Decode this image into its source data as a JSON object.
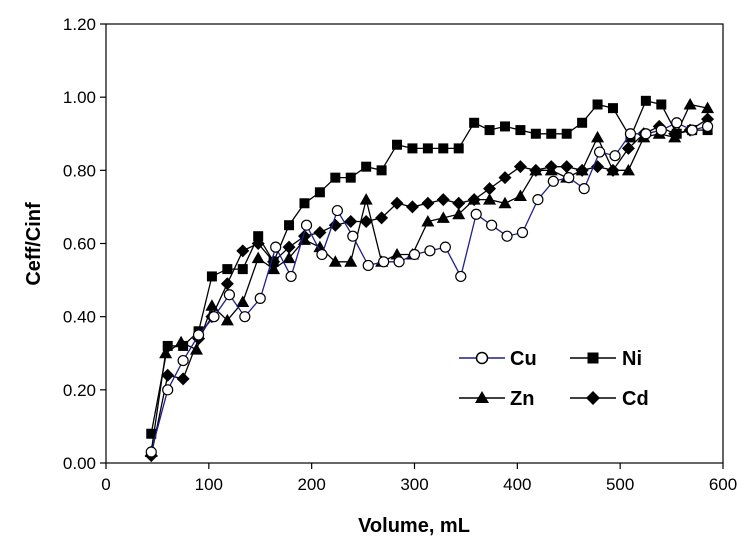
{
  "chart_data": {
    "type": "line",
    "title": "",
    "xlabel": "Volume, mL",
    "ylabel": "Ceff/Cinf",
    "xlim": [
      0,
      600
    ],
    "ylim": [
      0,
      1.2
    ],
    "x_ticks": [
      "0",
      "100",
      "200",
      "300",
      "400",
      "500",
      "600"
    ],
    "y_ticks": [
      "0.00",
      "0.20",
      "0.40",
      "0.60",
      "0.80",
      "1.00",
      "1.20"
    ],
    "grid": false,
    "legend_position": "bottom-right",
    "series": [
      {
        "name": "Cu",
        "marker": "circle-open",
        "line_color": "#1f1f8f",
        "x": [
          44,
          60,
          75,
          90,
          105,
          120,
          135,
          150,
          165,
          180,
          195,
          210,
          225,
          240,
          255,
          270,
          285,
          300,
          315,
          330,
          345,
          360,
          375,
          390,
          405,
          420,
          435,
          450,
          465,
          480,
          495,
          510,
          525,
          540,
          555,
          570,
          585
        ],
        "y": [
          0.03,
          0.2,
          0.28,
          0.35,
          0.4,
          0.46,
          0.4,
          0.45,
          0.59,
          0.51,
          0.65,
          0.57,
          0.69,
          0.62,
          0.54,
          0.55,
          0.55,
          0.57,
          0.58,
          0.59,
          0.51,
          0.68,
          0.65,
          0.62,
          0.63,
          0.72,
          0.77,
          0.78,
          0.75,
          0.85,
          0.84,
          0.9,
          0.9,
          0.91,
          0.93,
          0.91,
          0.92
        ]
      },
      {
        "name": "Ni",
        "marker": "square",
        "line_color": "#000000",
        "x": [
          44,
          60,
          75,
          90,
          103,
          118,
          133,
          148,
          163,
          178,
          193,
          208,
          223,
          238,
          253,
          268,
          283,
          298,
          313,
          328,
          343,
          358,
          373,
          388,
          403,
          418,
          433,
          448,
          463,
          478,
          493,
          510,
          525,
          540,
          555,
          570,
          585
        ],
        "y": [
          0.08,
          0.32,
          0.32,
          0.36,
          0.51,
          0.53,
          0.53,
          0.62,
          0.55,
          0.65,
          0.71,
          0.74,
          0.78,
          0.78,
          0.81,
          0.8,
          0.87,
          0.86,
          0.86,
          0.86,
          0.86,
          0.93,
          0.91,
          0.92,
          0.91,
          0.9,
          0.9,
          0.9,
          0.93,
          0.98,
          0.97,
          0.89,
          0.99,
          0.98,
          0.9,
          0.91,
          0.91
        ]
      },
      {
        "name": "Zn",
        "marker": "triangle",
        "line_color": "#000000",
        "x": [
          44,
          58,
          73,
          88,
          103,
          118,
          133,
          148,
          163,
          178,
          193,
          208,
          223,
          238,
          253,
          268,
          283,
          298,
          313,
          328,
          343,
          358,
          373,
          388,
          403,
          418,
          433,
          448,
          463,
          478,
          493,
          508,
          523,
          538,
          553,
          568,
          585
        ],
        "y": [
          0.03,
          0.3,
          0.33,
          0.31,
          0.43,
          0.39,
          0.44,
          0.56,
          0.53,
          0.56,
          0.61,
          0.59,
          0.55,
          0.55,
          0.72,
          0.55,
          0.57,
          0.57,
          0.66,
          0.67,
          0.68,
          0.72,
          0.72,
          0.71,
          0.73,
          0.8,
          0.8,
          0.78,
          0.8,
          0.89,
          0.8,
          0.8,
          0.89,
          0.9,
          0.89,
          0.98,
          0.97
        ]
      },
      {
        "name": "Cd",
        "marker": "diamond",
        "line_color": "#000000",
        "x": [
          44,
          60,
          75,
          90,
          103,
          118,
          133,
          148,
          163,
          178,
          193,
          208,
          223,
          238,
          253,
          268,
          283,
          298,
          313,
          328,
          343,
          358,
          373,
          388,
          403,
          418,
          433,
          448,
          463,
          478,
          493,
          508,
          523,
          538,
          553,
          568,
          585
        ],
        "y": [
          0.02,
          0.24,
          0.23,
          0.34,
          0.4,
          0.49,
          0.58,
          0.6,
          0.55,
          0.59,
          0.62,
          0.63,
          0.65,
          0.66,
          0.66,
          0.67,
          0.71,
          0.7,
          0.71,
          0.72,
          0.71,
          0.72,
          0.75,
          0.78,
          0.81,
          0.8,
          0.81,
          0.81,
          0.8,
          0.81,
          0.8,
          0.86,
          0.9,
          0.92,
          0.9,
          0.91,
          0.94
        ]
      }
    ]
  }
}
